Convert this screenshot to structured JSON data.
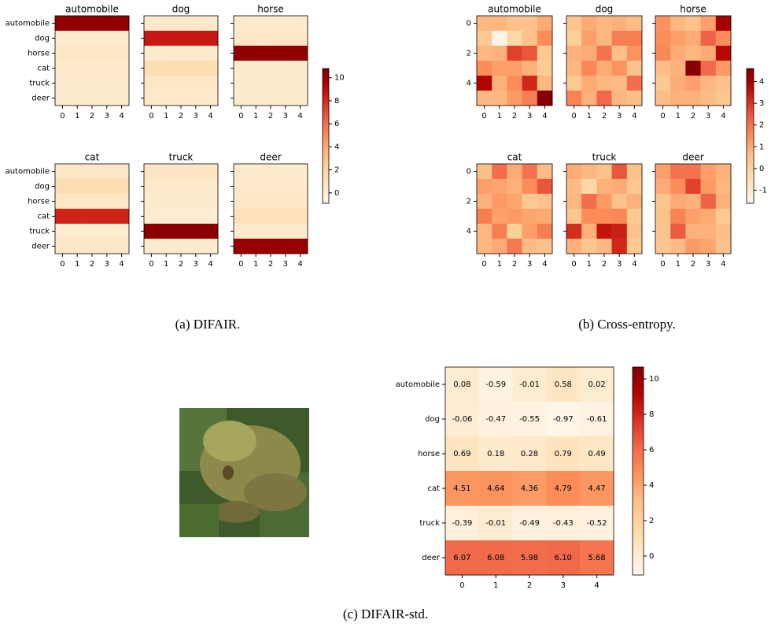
{
  "chart_data": [
    {
      "type": "heatmap",
      "caption": "(a) DIFAIR.",
      "colormap": "OrRd",
      "clim": [
        -0.9,
        10.8
      ],
      "cticks": [
        0,
        2,
        4,
        6,
        8,
        10
      ],
      "rows": [
        "automobile",
        "dog",
        "horse",
        "cat",
        "truck",
        "deer"
      ],
      "xticks": [
        0,
        1,
        2,
        3,
        4
      ],
      "panels": [
        {
          "title": "automobile",
          "values": [
            [
              10.2,
              10.3,
              10.2,
              10.3,
              10.2
            ],
            [
              0.4,
              0.4,
              0.4,
              0.4,
              0.4
            ],
            [
              0.6,
              0.6,
              0.6,
              0.6,
              0.6
            ],
            [
              0.5,
              0.5,
              0.5,
              0.5,
              0.5
            ],
            [
              0.4,
              0.4,
              0.4,
              0.4,
              0.4
            ],
            [
              0.3,
              0.3,
              0.3,
              0.3,
              0.3
            ]
          ]
        },
        {
          "title": "dog",
          "values": [
            [
              0.5,
              0.5,
              0.5,
              0.5,
              0.5
            ],
            [
              8.6,
              8.6,
              8.6,
              8.6,
              8.6
            ],
            [
              0.4,
              0.4,
              0.4,
              0.4,
              0.4
            ],
            [
              1.3,
              1.3,
              1.3,
              1.3,
              1.3
            ],
            [
              0.6,
              0.6,
              0.6,
              0.6,
              0.6
            ],
            [
              0.5,
              0.5,
              0.5,
              0.5,
              0.5
            ]
          ]
        },
        {
          "title": "horse",
          "values": [
            [
              0.4,
              0.4,
              0.4,
              0.4,
              0.4
            ],
            [
              0.6,
              0.6,
              0.6,
              0.6,
              0.6
            ],
            [
              10.3,
              10.3,
              10.3,
              10.3,
              10.3
            ],
            [
              0.3,
              0.3,
              0.3,
              0.3,
              0.3
            ],
            [
              0.3,
              0.3,
              0.3,
              0.3,
              0.3
            ],
            [
              0.3,
              0.3,
              0.3,
              0.3,
              0.3
            ]
          ]
        },
        {
          "title": "cat",
          "values": [
            [
              0.6,
              0.6,
              0.6,
              0.6,
              0.6
            ],
            [
              1.3,
              1.3,
              1.3,
              1.3,
              1.3
            ],
            [
              0.6,
              0.6,
              0.6,
              0.6,
              0.6
            ],
            [
              8.2,
              8.2,
              8.2,
              8.2,
              8.2
            ],
            [
              0.2,
              0.2,
              0.2,
              0.2,
              0.2
            ],
            [
              0.6,
              0.6,
              0.6,
              0.6,
              0.6
            ]
          ]
        },
        {
          "title": "truck",
          "values": [
            [
              0.7,
              0.7,
              0.7,
              0.7,
              0.7
            ],
            [
              0.5,
              0.5,
              0.5,
              0.5,
              0.5
            ],
            [
              0.4,
              0.4,
              0.4,
              0.4,
              0.4
            ],
            [
              0.1,
              0.1,
              0.1,
              0.1,
              0.1
            ],
            [
              10.5,
              10.5,
              10.5,
              10.5,
              10.5
            ],
            [
              0.4,
              0.4,
              0.4,
              0.4,
              0.4
            ]
          ]
        },
        {
          "title": "deer",
          "values": [
            [
              0.4,
              0.4,
              0.4,
              0.4,
              0.4
            ],
            [
              0.5,
              0.5,
              0.5,
              0.5,
              0.5
            ],
            [
              0.6,
              0.6,
              0.6,
              0.6,
              0.6
            ],
            [
              1.1,
              1.1,
              1.1,
              1.1,
              1.1
            ],
            [
              0.3,
              0.3,
              0.3,
              0.3,
              0.3
            ],
            [
              10.1,
              10.1,
              10.1,
              10.1,
              10.1
            ]
          ]
        }
      ]
    },
    {
      "type": "heatmap",
      "caption": "(b) Cross-entropy.",
      "colormap": "OrRd",
      "clim": [
        -1.6,
        4.6
      ],
      "cticks": [
        -1,
        0,
        1,
        2,
        3,
        4
      ],
      "yticks": [
        0,
        2,
        4
      ],
      "xticks": [
        0,
        1,
        2,
        3,
        4
      ],
      "panels": [
        {
          "title": "automobile",
          "values": [
            [
              0.8,
              0.8,
              0.5,
              0.5,
              1.0
            ],
            [
              0.3,
              -1.5,
              -0.2,
              0.5,
              1.5
            ],
            [
              0.8,
              0.9,
              2.8,
              2.5,
              0.3
            ],
            [
              1.5,
              1.2,
              1.2,
              0.9,
              0.2
            ],
            [
              3.8,
              0.9,
              1.5,
              3.2,
              0.8
            ],
            [
              0.8,
              0.8,
              1.3,
              1.8,
              4.5
            ]
          ]
        },
        {
          "title": "dog",
          "values": [
            [
              0.4,
              1.0,
              0.8,
              0.9,
              0.7
            ],
            [
              0.1,
              1.2,
              0.8,
              1.8,
              1.8
            ],
            [
              0.9,
              1.0,
              2.0,
              0.5,
              1.4
            ],
            [
              0.8,
              1.6,
              1.0,
              1.4,
              0.5
            ],
            [
              0.3,
              1.0,
              0.8,
              0.7,
              2.1
            ],
            [
              1.7,
              0.9,
              2.2,
              0.8,
              0.6
            ]
          ]
        },
        {
          "title": "horse",
          "values": [
            [
              1.4,
              0.8,
              0.5,
              1.2,
              4.0
            ],
            [
              1.5,
              1.2,
              1.0,
              2.3,
              1.5
            ],
            [
              1.6,
              1.0,
              0.8,
              1.0,
              3.7
            ],
            [
              0.6,
              0.9,
              4.5,
              2.2,
              1.3
            ],
            [
              0.3,
              1.0,
              1.2,
              0.8,
              0.5
            ],
            [
              0.6,
              0.9,
              0.9,
              0.7,
              0.4
            ]
          ]
        },
        {
          "title": "cat",
          "values": [
            [
              0.6,
              2.1,
              1.0,
              2.0,
              0.7
            ],
            [
              1.2,
              1.1,
              0.9,
              1.5,
              2.5
            ],
            [
              0.9,
              1.3,
              1.1,
              0.3,
              0.5
            ],
            [
              1.8,
              1.2,
              1.3,
              1.1,
              1.0
            ],
            [
              0.8,
              1.8,
              0.1,
              1.2,
              1.8
            ],
            [
              0.8,
              1.0,
              1.9,
              0.7,
              0.5
            ]
          ]
        },
        {
          "title": "truck",
          "values": [
            [
              1.0,
              0.8,
              0.5,
              2.5,
              0.5
            ],
            [
              0.7,
              -0.2,
              0.9,
              1.0,
              0.4
            ],
            [
              0.8,
              2.1,
              1.3,
              0.5,
              0.9
            ],
            [
              0.4,
              1.5,
              1.5,
              1.6,
              0.3
            ],
            [
              3.1,
              0.9,
              3.5,
              3.3,
              0.5
            ],
            [
              0.9,
              0.4,
              0.8,
              3.2,
              0.3
            ]
          ]
        },
        {
          "title": "deer",
          "values": [
            [
              1.2,
              2.0,
              2.0,
              1.2,
              0.9
            ],
            [
              1.0,
              1.5,
              2.8,
              1.3,
              0.8
            ],
            [
              0.4,
              1.0,
              0.9,
              2.3,
              0.9
            ],
            [
              0.5,
              1.7,
              1.2,
              1.0,
              0.3
            ],
            [
              0.4,
              2.4,
              0.9,
              0.9,
              0.6
            ],
            [
              0.4,
              0.7,
              1.3,
              1.1,
              0.5
            ]
          ]
        }
      ]
    },
    {
      "type": "heatmap",
      "caption": "(c) DIFAIR-std.",
      "colormap": "OrRd",
      "clim": [
        -1.07,
        10.67
      ],
      "cticks": [
        0,
        2,
        4,
        6,
        8,
        10
      ],
      "rows": [
        "automobile",
        "dog",
        "horse",
        "cat",
        "truck",
        "deer"
      ],
      "xticks": [
        0,
        1,
        2,
        3,
        4
      ],
      "values": [
        [
          0.08,
          -0.59,
          -0.01,
          0.58,
          0.02
        ],
        [
          -0.06,
          -0.47,
          -0.55,
          -0.97,
          -0.61
        ],
        [
          0.69,
          0.18,
          0.28,
          0.79,
          0.49
        ],
        [
          4.51,
          4.64,
          4.36,
          4.79,
          4.47
        ],
        [
          -0.39,
          -0.01,
          -0.49,
          -0.43,
          -0.52
        ],
        [
          6.07,
          6.08,
          5.98,
          6.1,
          5.68
        ]
      ],
      "value_labels": [
        [
          "0.08",
          "-0.59",
          "-0.01",
          "0.58",
          "0.02"
        ],
        [
          "-0.06",
          "-0.47",
          "-0.55",
          "-0.97",
          "-0.61"
        ],
        [
          "0.69",
          "0.18",
          "0.28",
          "0.79",
          "0.49"
        ],
        [
          "4.51",
          "4.64",
          "4.36",
          "4.79",
          "4.47"
        ],
        [
          "-0.39",
          "-0.01",
          "-0.49",
          "-0.43",
          "-0.52"
        ],
        [
          "6.07",
          "6.08",
          "5.98",
          "6.10",
          "5.68"
        ]
      ]
    }
  ]
}
